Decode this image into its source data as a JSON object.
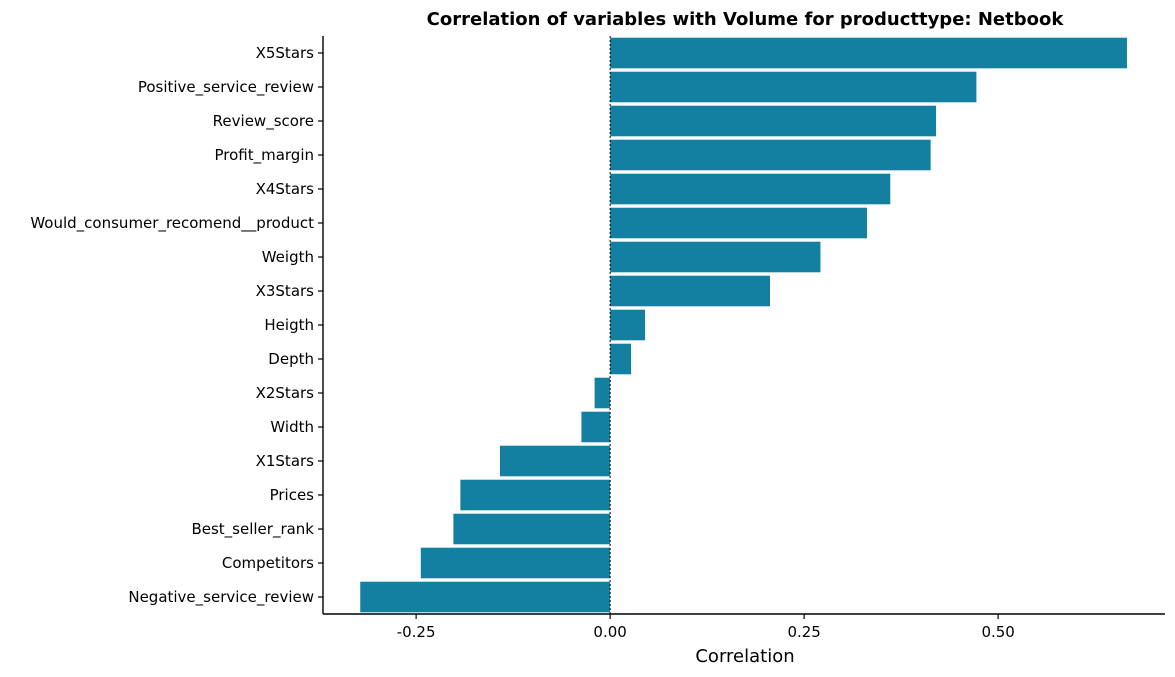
{
  "chart_data": {
    "type": "bar",
    "orientation": "horizontal",
    "title": "Correlation of variables with Volume for producttype:  Netbook",
    "xlabel": "Correlation",
    "ylabel": "",
    "xlim": [
      -0.37,
      0.715
    ],
    "x_ticks": [
      -0.25,
      0.0,
      0.25,
      0.5
    ],
    "x_tick_labels": [
      "-0.25",
      "0.00",
      "0.25",
      "0.50"
    ],
    "categories": [
      "X5Stars",
      "Positive_service_review",
      "Review_score",
      "Profit_margin",
      "X4Stars",
      "Would_consumer_recomend__product",
      "Weigth",
      "X3Stars",
      "Heigth",
      "Depth",
      "X2Stars",
      "Width",
      "X1Stars",
      "Prices",
      "Best_seller_rank",
      "Competitors",
      "Negative_service_review"
    ],
    "values": [
      0.666,
      0.472,
      0.42,
      0.413,
      0.361,
      0.331,
      0.271,
      0.206,
      0.045,
      0.027,
      -0.02,
      -0.037,
      -0.142,
      -0.193,
      -0.202,
      -0.244,
      -0.322
    ],
    "bar_color": "#1380A1",
    "grid": false,
    "zero_line": "dotted vertical line at 0",
    "legend": "none"
  }
}
